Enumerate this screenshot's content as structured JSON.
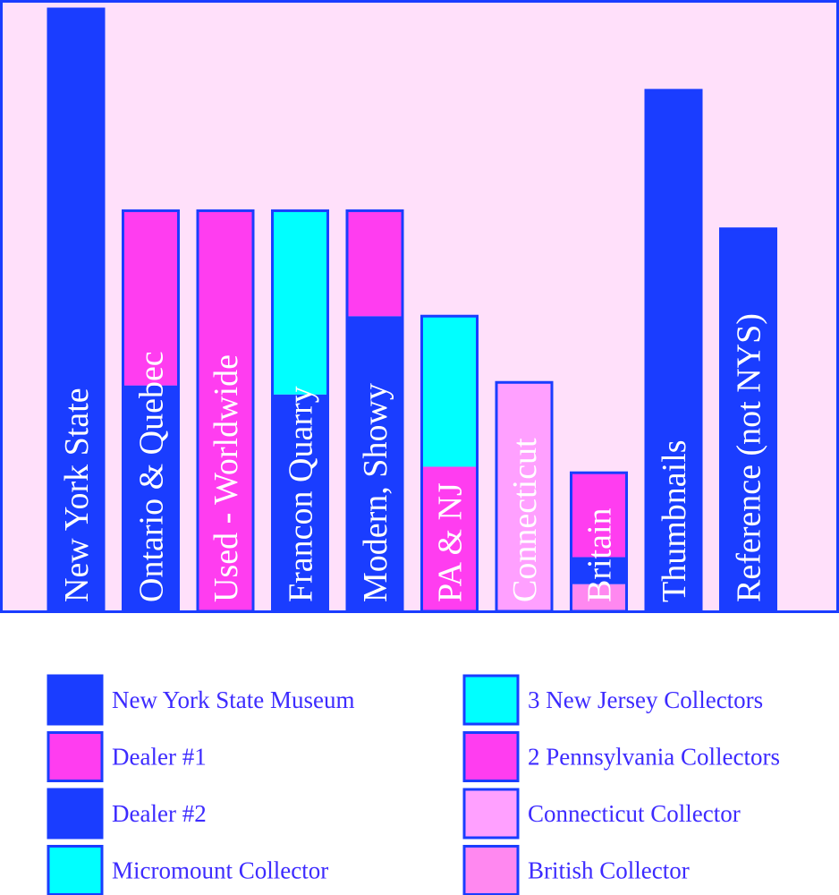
{
  "colors": {
    "background": "#ffe0fa",
    "frame": "#1a3dff",
    "nys_museum": "#1a3dff",
    "dealer1": "#ff3df0",
    "dealer2": "#1a3dff",
    "micromount": "#00ffff",
    "nj": "#00ffff",
    "pa": "#ff3df0",
    "connecticut": "#ffa0ff",
    "british": "#ff88f0"
  },
  "chart_data": {
    "type": "bar",
    "stacked": true,
    "ylim": [
      0,
      100
    ],
    "grid": false,
    "legend_position": "bottom",
    "categories": [
      "New York State",
      "Ontario & Quebec",
      "Used - Worldwide",
      "Francon Quarry",
      "Modern, Showy",
      "PA & NJ",
      "Connecticut",
      "Britain",
      "Thumbnails",
      "Reference (not NYS)"
    ],
    "bars": [
      {
        "segments": [
          {
            "series": "New York State Museum",
            "value": 100
          }
        ]
      },
      {
        "segments": [
          {
            "series": "Dealer #2",
            "value": 37.5
          },
          {
            "series": "Dealer #1",
            "value": 29
          }
        ]
      },
      {
        "segments": [
          {
            "series": "Dealer #1",
            "value": 66.5
          }
        ]
      },
      {
        "segments": [
          {
            "series": "Dealer #2",
            "value": 36
          },
          {
            "series": "Micromount Collector",
            "value": 30.5
          }
        ]
      },
      {
        "segments": [
          {
            "series": "Dealer #2",
            "value": 49
          },
          {
            "series": "Dealer #1",
            "value": 17.5
          }
        ]
      },
      {
        "segments": [
          {
            "series": "2 Pennsylvania Collectors",
            "value": 24
          },
          {
            "series": "3 New Jersey Collectors",
            "value": 25
          }
        ]
      },
      {
        "segments": [
          {
            "series": "Connecticut Collector",
            "value": 38
          }
        ]
      },
      {
        "segments": [
          {
            "series": "British Collector",
            "value": 4.5
          },
          {
            "series": "Dealer #2",
            "value": 4.5
          },
          {
            "series": "Dealer #1",
            "value": 14
          }
        ]
      },
      {
        "segments": [
          {
            "series": "New York State Museum",
            "value": 86.5
          }
        ]
      },
      {
        "segments": [
          {
            "series": "New York State Museum",
            "value": 63.5
          }
        ]
      }
    ],
    "legend": [
      {
        "label": "New York State Museum",
        "color_key": "nys_museum"
      },
      {
        "label": "Dealer #1",
        "color_key": "dealer1"
      },
      {
        "label": "Dealer #2",
        "color_key": "dealer2"
      },
      {
        "label": "Micromount Collector",
        "color_key": "micromount"
      },
      {
        "label": "3 New Jersey Collectors",
        "color_key": "nj"
      },
      {
        "label": "2 Pennsylvania Collectors",
        "color_key": "pa"
      },
      {
        "label": "Connecticut Collector",
        "color_key": "connecticut"
      },
      {
        "label": "British Collector",
        "color_key": "british"
      }
    ]
  }
}
